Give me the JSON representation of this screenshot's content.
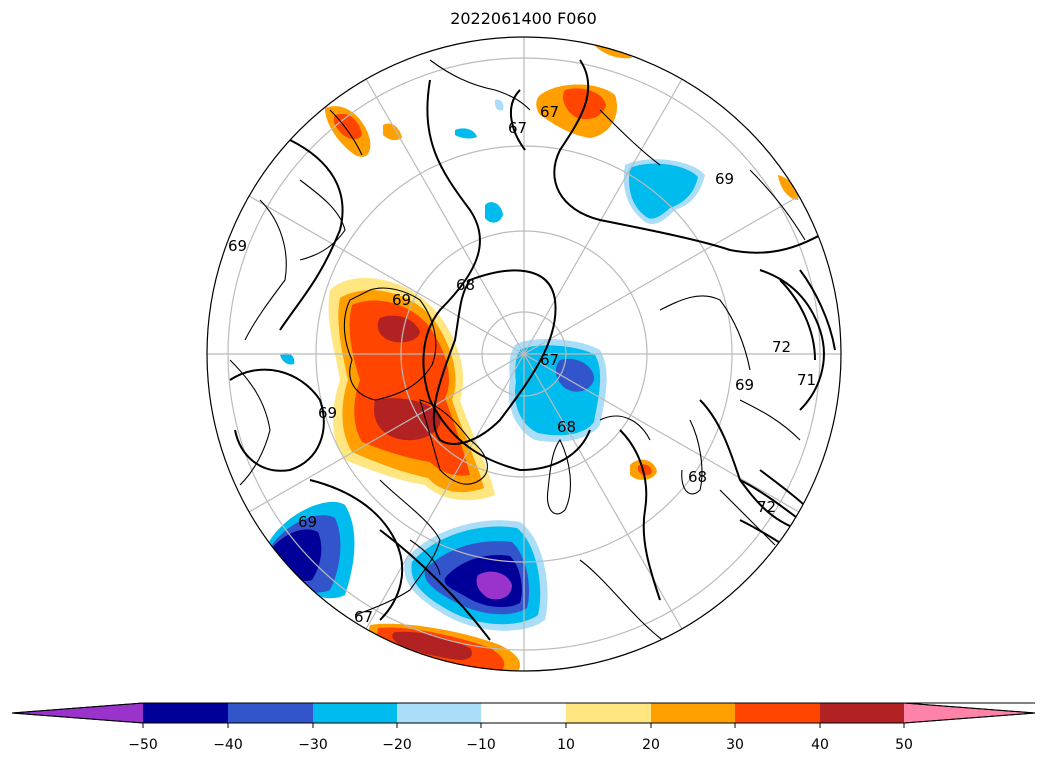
{
  "title": "2022061400 F060",
  "colorbar": {
    "extend": "both",
    "bins": [
      {
        "color": "#9933cc"
      },
      {
        "color": "#000099"
      },
      {
        "color": "#3355cc"
      },
      {
        "color": "#00bbee"
      },
      {
        "color": "#aaddf7"
      },
      {
        "color": "#ffffff"
      },
      {
        "color": "#ffe680"
      },
      {
        "color": "#ff9f00"
      },
      {
        "color": "#ff4500"
      },
      {
        "color": "#b22222"
      },
      {
        "color": "#ff82a8"
      }
    ],
    "ticks": [
      "−50",
      "−40",
      "−30",
      "−20",
      "−10",
      "10",
      "20",
      "30",
      "40",
      "50"
    ]
  },
  "contour_labels": [
    {
      "text": "67"
    },
    {
      "text": "67"
    },
    {
      "text": "69"
    },
    {
      "text": "69"
    },
    {
      "text": "68"
    },
    {
      "text": "69"
    },
    {
      "text": "67"
    },
    {
      "text": "68"
    },
    {
      "text": "69"
    },
    {
      "text": "72"
    },
    {
      "text": "71"
    },
    {
      "text": "67"
    },
    {
      "text": "72"
    },
    {
      "text": "69"
    },
    {
      "text": "69"
    },
    {
      "text": "68"
    }
  ]
}
